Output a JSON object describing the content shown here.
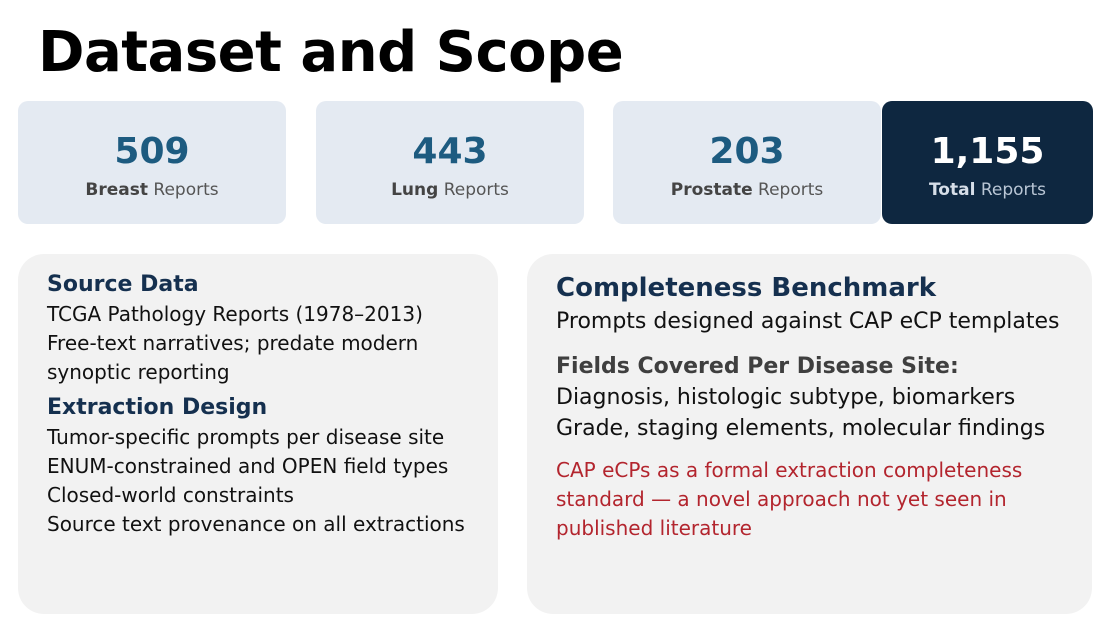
{
  "title": "Dataset and Scope",
  "stats": [
    {
      "value": "509",
      "label_bold": "Breast",
      "label_rest": "Reports"
    },
    {
      "value": "443",
      "label_bold": "Lung",
      "label_rest": "Reports"
    },
    {
      "value": "203",
      "label_bold": "Prostate",
      "label_rest": "Reports"
    },
    {
      "value": "1,155",
      "label_bold": "Total",
      "label_rest": "Reports"
    }
  ],
  "source": {
    "heading": "Source Data",
    "lines": [
      "TCGA Pathology Reports (1978–2013)",
      "Free-text narratives; predate modern synoptic reporting"
    ]
  },
  "extraction": {
    "heading": "Extraction Design",
    "lines": [
      "Tumor-specific prompts per disease site",
      "ENUM-constrained and OPEN field types",
      "Closed-world constraints",
      "Source text provenance on all extractions"
    ]
  },
  "benchmark": {
    "heading": "Completeness Benchmark",
    "intro": "Prompts designed against CAP eCP templates",
    "fields_heading": "Fields Covered Per Disease Site:",
    "fields": [
      "Diagnosis, histologic subtype, biomarkers",
      "Grade, staging elements, molecular findings"
    ],
    "note": "CAP eCPs as a formal extraction completeness standard — a novel approach not yet seen in published literature"
  }
}
